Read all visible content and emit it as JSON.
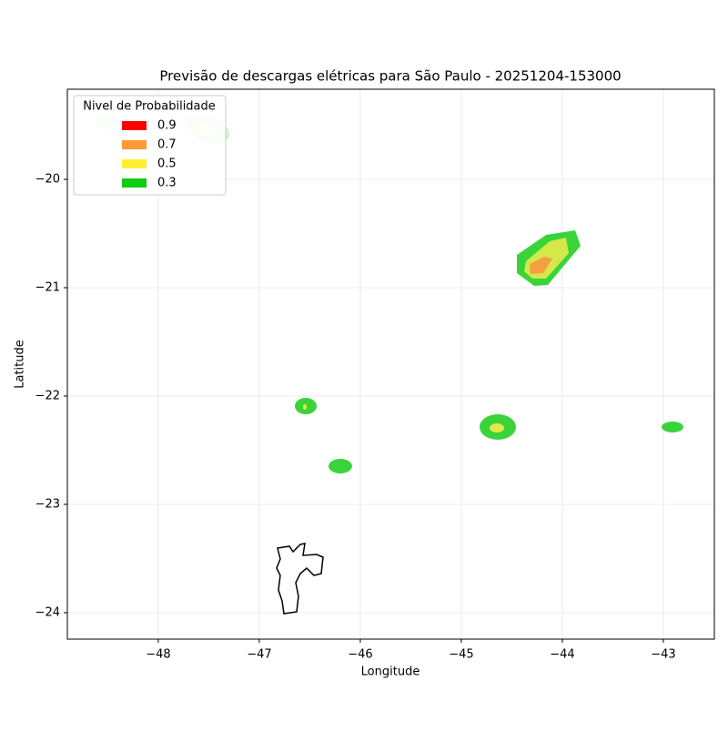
{
  "chart_data": {
    "type": "map",
    "title": "Previsão de descargas elétricas para São Paulo - 20251204-153000",
    "x_label": "Longitude",
    "y_label": "Latitude",
    "xlim": [
      -48.9,
      -42.495
    ],
    "ylim": [
      -24.244,
      -19.168
    ],
    "xticks": [
      {
        "value": -48,
        "label": "−48"
      },
      {
        "value": -47,
        "label": "−47"
      },
      {
        "value": -46,
        "label": "−46"
      },
      {
        "value": -45,
        "label": "−45"
      },
      {
        "value": -44,
        "label": "−44"
      },
      {
        "value": -43,
        "label": "−43"
      }
    ],
    "yticks": [
      {
        "value": -20,
        "label": "−20"
      },
      {
        "value": -21,
        "label": "−21"
      },
      {
        "value": -22,
        "label": "−22"
      },
      {
        "value": -23,
        "label": "−23"
      },
      {
        "value": -24,
        "label": "−24"
      }
    ],
    "grid": true,
    "legend": {
      "title": "Nivel de Probabilidade",
      "corner": "upper left",
      "levels": [
        0.9,
        0.7,
        0.5,
        0.3
      ],
      "colors": [
        "#ff0000",
        "#ff9933",
        "#ffee33",
        "#11cc11"
      ]
    }
  }
}
